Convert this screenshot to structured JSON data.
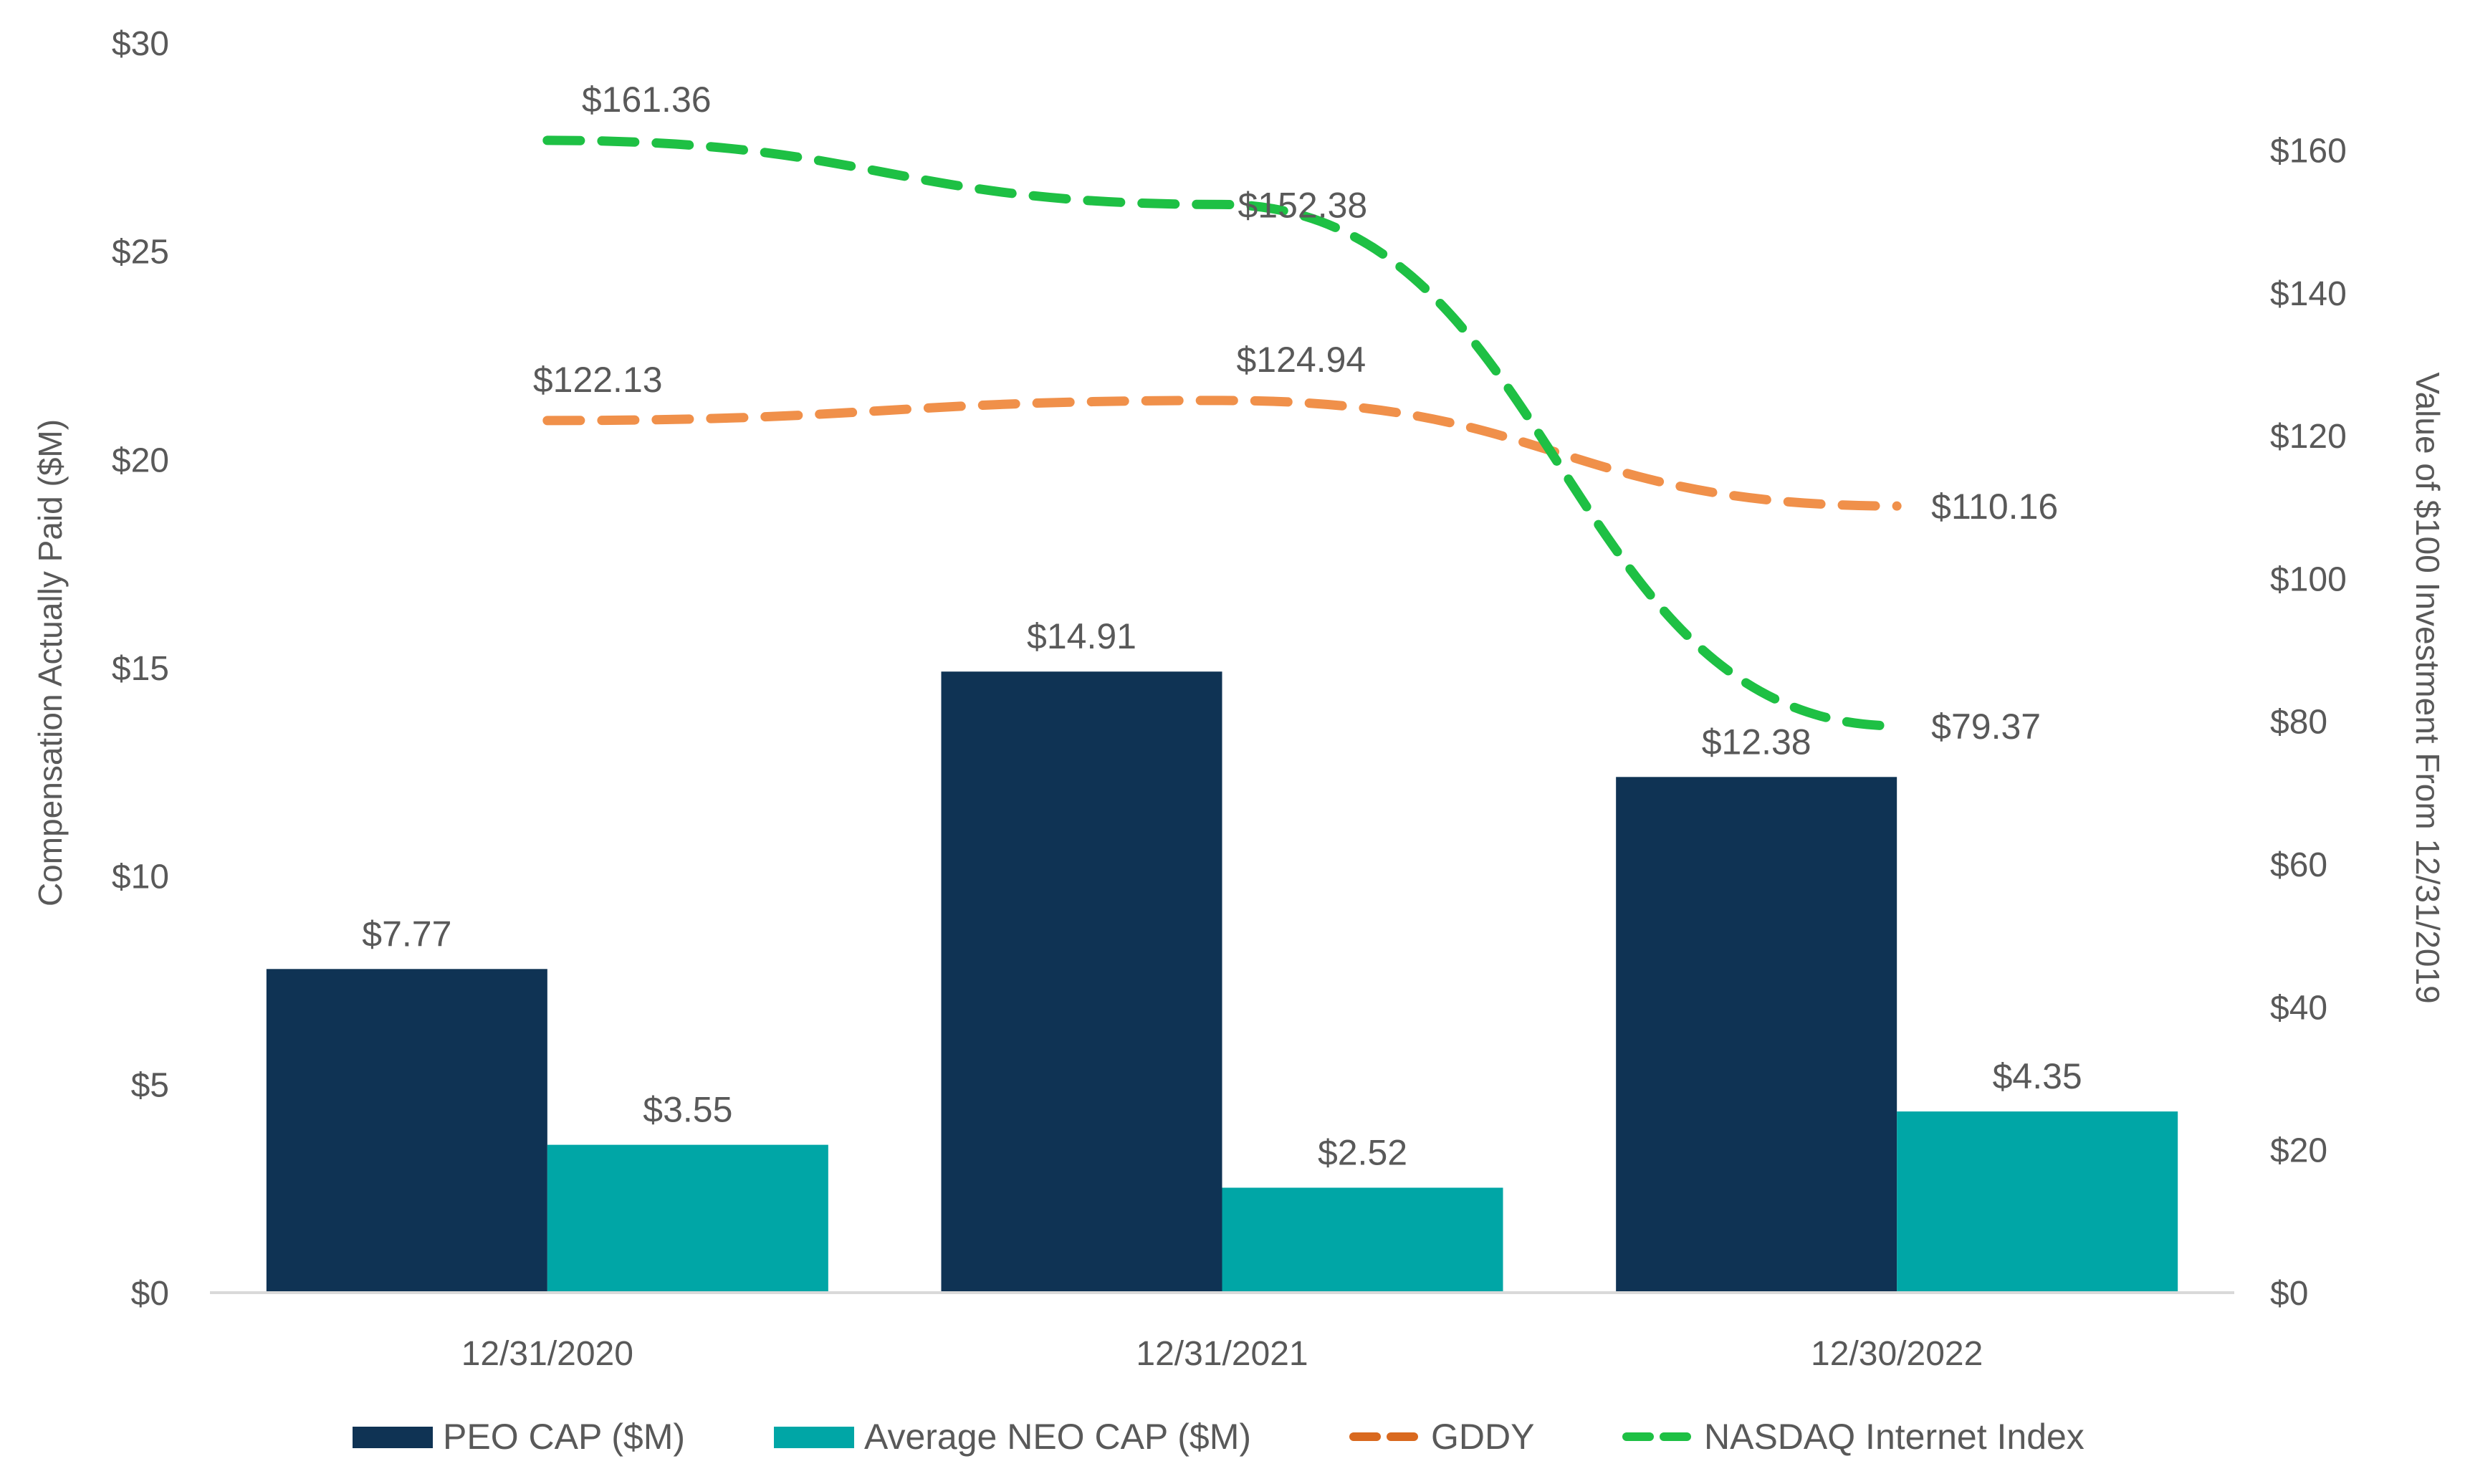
{
  "chart_data": {
    "type": "bar",
    "categories": [
      "12/31/2020",
      "12/31/2021",
      "12/30/2022"
    ],
    "series": [
      {
        "name": "PEO CAP ($M)",
        "kind": "bar",
        "axis": "left",
        "color": "#0f3354",
        "values": [
          7.77,
          14.91,
          12.38
        ],
        "labels": [
          "$7.77",
          "$14.91",
          "$12.38"
        ]
      },
      {
        "name": "Average NEO CAP ($M)",
        "kind": "bar",
        "axis": "left",
        "color": "#00a6a6",
        "values": [
          3.55,
          2.52,
          4.35
        ],
        "labels": [
          "$3.55",
          "$2.52",
          "$4.35"
        ]
      },
      {
        "name": "GDDY",
        "kind": "line",
        "style": "dashed",
        "axis": "right",
        "color": "#f0904a",
        "legend_color": "#d9691f",
        "values": [
          122.13,
          124.94,
          110.16
        ],
        "labels": [
          "$122.13",
          "$124.94",
          "$110.16"
        ]
      },
      {
        "name": "NASDAQ Internet Index",
        "kind": "line",
        "style": "dashed",
        "axis": "right",
        "color": "#1ec044",
        "values": [
          161.36,
          152.38,
          79.37
        ],
        "labels": [
          "$161.36",
          "$152.38",
          "$79.37"
        ]
      }
    ],
    "left_axis": {
      "title": "Compensation Actually Paid ($M)",
      "range": [
        0,
        30
      ],
      "ticks": [
        0,
        5,
        10,
        15,
        20,
        25,
        30
      ],
      "tick_labels": [
        "$0",
        "$5",
        "$10",
        "$15",
        "$20",
        "$25",
        "$30"
      ]
    },
    "right_axis": {
      "title": "Value of $100 Investment From 12/31/2019",
      "range": [
        0,
        175
      ],
      "ticks": [
        0,
        20,
        40,
        60,
        80,
        100,
        120,
        140,
        160
      ],
      "tick_labels": [
        "$0",
        "$20",
        "$40",
        "$60",
        "$80",
        "$100",
        "$120",
        "$140",
        "$160"
      ]
    },
    "legend_position": "bottom",
    "grid": false
  },
  "colors": {
    "axis_line": "#d9d9d9",
    "text": "#595959"
  }
}
